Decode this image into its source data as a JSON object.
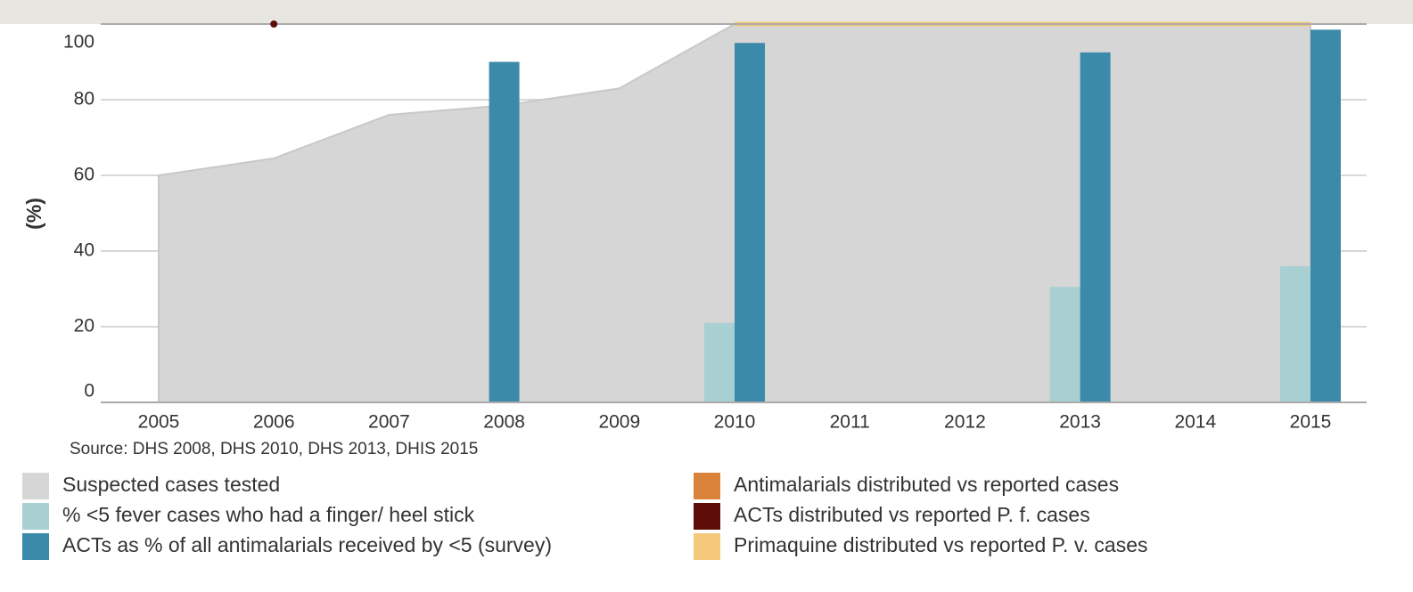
{
  "chart_data": {
    "type": "bar",
    "ylabel": "(%)",
    "source": "Source: DHS 2008, DHS 2010, DHS 2013, DHIS 2015",
    "categories": [
      "2005",
      "2006",
      "2007",
      "2008",
      "2009",
      "2010",
      "2011",
      "2012",
      "2013",
      "2014",
      "2015"
    ],
    "ylim": [
      0,
      100
    ],
    "yticks": [
      0,
      20,
      40,
      60,
      80,
      100
    ],
    "grid": true,
    "series": [
      {
        "name": "Suspected cases tested",
        "type": "area",
        "color": "#d6d6d6",
        "values": [
          60,
          64.5,
          76,
          78.5,
          83,
          100,
          100,
          100,
          100,
          100,
          100
        ]
      },
      {
        "name": "% <5 fever cases who had a finger/ heel stick",
        "type": "bar",
        "color": "#a8cfd1",
        "values": [
          null,
          null,
          null,
          null,
          null,
          21,
          null,
          null,
          30.5,
          null,
          36
        ]
      },
      {
        "name": "ACTs as % of all antimalarials received by <5 (survey)",
        "type": "bar",
        "color": "#3b8aa9",
        "values": [
          null,
          null,
          null,
          90,
          null,
          95,
          null,
          null,
          92.5,
          null,
          98.5
        ]
      },
      {
        "name": "Antimalarials distributed vs reported cases",
        "type": "line",
        "color": "#d9843a",
        "values": [
          null,
          null,
          null,
          null,
          null,
          null,
          null,
          null,
          null,
          null,
          null
        ]
      },
      {
        "name": "ACTs distributed vs reported P. f. cases",
        "type": "dot",
        "color": "#5e0e06",
        "values": [
          null,
          100,
          null,
          null,
          null,
          null,
          null,
          null,
          null,
          null,
          null
        ]
      },
      {
        "name": "Primaquine distributed vs reported P. v. cases",
        "type": "line",
        "color": "#f5c97c",
        "values": [
          null,
          null,
          null,
          null,
          null,
          100,
          100,
          100,
          100,
          100,
          100
        ]
      }
    ]
  }
}
